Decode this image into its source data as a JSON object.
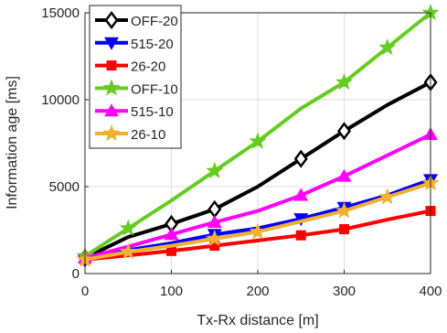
{
  "chart_data": {
    "type": "line",
    "title": "",
    "xlabel": "Tx-Rx distance [m]",
    "ylabel": "Information age [ms]",
    "xlim": [
      0,
      400
    ],
    "ylim": [
      0,
      15000
    ],
    "xticks": [
      0,
      100,
      200,
      300,
      400
    ],
    "yticks": [
      0,
      5000,
      10000,
      15000
    ],
    "xtick_labels": [
      "0",
      "100",
      "200",
      "300",
      "400"
    ],
    "ytick_labels": [
      "0",
      "5000",
      "10000",
      "15000"
    ],
    "grid": true,
    "legend_position": "top-left",
    "series": [
      {
        "name": "OFF-20",
        "color": "#000000",
        "marker": "diamond",
        "x": [
          0,
          50,
          100,
          150,
          200,
          250,
          300,
          350,
          400
        ],
        "y": [
          900,
          2100,
          2850,
          3700,
          5000,
          6600,
          8200,
          9700,
          11000
        ],
        "marked_x": [
          0,
          100,
          150,
          250,
          300,
          400
        ]
      },
      {
        "name": "515-20",
        "color": "#0000ff",
        "marker": "triangle-down",
        "x": [
          0,
          50,
          100,
          150,
          200,
          250,
          300,
          350,
          400
        ],
        "y": [
          750,
          1350,
          1750,
          2250,
          2600,
          3150,
          3800,
          4500,
          5400
        ],
        "marked_x": [
          0,
          150,
          250,
          300,
          400
        ]
      },
      {
        "name": "26-20",
        "color": "#ff0000",
        "marker": "square",
        "x": [
          0,
          50,
          100,
          150,
          200,
          250,
          300,
          350,
          400
        ],
        "y": [
          800,
          1050,
          1300,
          1600,
          1900,
          2200,
          2550,
          3100,
          3600
        ],
        "marked_x": [
          0,
          100,
          150,
          250,
          300,
          400
        ]
      },
      {
        "name": "OFF-10",
        "color": "#66cc22",
        "marker": "star",
        "x": [
          0,
          50,
          100,
          150,
          200,
          250,
          300,
          350,
          400
        ],
        "y": [
          1000,
          2600,
          4200,
          5900,
          7600,
          9500,
          11000,
          13000,
          15000
        ],
        "marked_x": [
          0,
          50,
          150,
          200,
          300,
          350,
          400
        ]
      },
      {
        "name": "515-10",
        "color": "#ff00ff",
        "marker": "triangle-up",
        "x": [
          0,
          50,
          100,
          150,
          200,
          250,
          300,
          350,
          400
        ],
        "y": [
          900,
          1550,
          2250,
          2950,
          3600,
          4500,
          5600,
          6800,
          8000
        ],
        "marked_x": [
          0,
          100,
          150,
          250,
          300,
          400
        ]
      },
      {
        "name": "26-10",
        "color": "#f0b030",
        "marker": "star",
        "x": [
          0,
          50,
          100,
          150,
          200,
          250,
          300,
          350,
          400
        ],
        "y": [
          800,
          1250,
          1600,
          2000,
          2400,
          3000,
          3600,
          4400,
          5200
        ],
        "marked_x": [
          0,
          50,
          150,
          200,
          300,
          350,
          400
        ]
      }
    ]
  }
}
